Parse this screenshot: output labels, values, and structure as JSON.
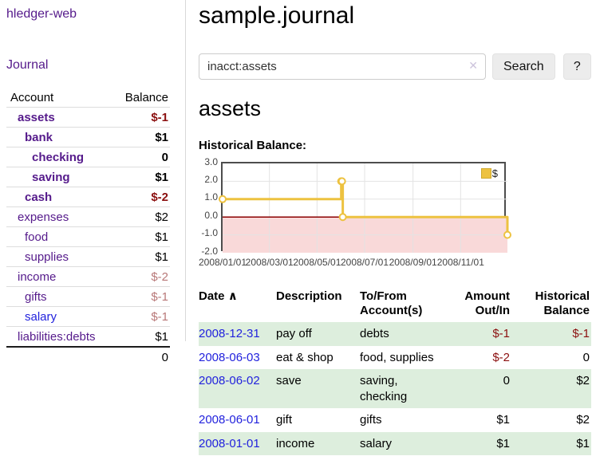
{
  "sidebar": {
    "app_title": "hledger-web",
    "nav": {
      "journal_label": "Journal"
    },
    "accounts_table": {
      "headers": {
        "account": "Account",
        "balance": "Balance"
      },
      "rows": [
        {
          "name": "assets",
          "indent": 1,
          "bold": true,
          "link_color": "purple",
          "balance": "$-1",
          "balance_color": "negative"
        },
        {
          "name": "bank",
          "indent": 2,
          "bold": true,
          "link_color": "purple",
          "balance": "$1",
          "balance_color": "normal"
        },
        {
          "name": "checking",
          "indent": 3,
          "bold": true,
          "link_color": "purple",
          "balance": "0",
          "balance_color": "normal"
        },
        {
          "name": "saving",
          "indent": 3,
          "bold": true,
          "link_color": "purple",
          "balance": "$1",
          "balance_color": "normal"
        },
        {
          "name": "cash",
          "indent": 2,
          "bold": true,
          "link_color": "purple",
          "balance": "$-2",
          "balance_color": "negative"
        },
        {
          "name": "expenses",
          "indent": 1,
          "bold": false,
          "link_color": "purple",
          "balance": "$2",
          "balance_color": "normal"
        },
        {
          "name": "food",
          "indent": 2,
          "bold": false,
          "link_color": "purple",
          "balance": "$1",
          "balance_color": "normal"
        },
        {
          "name": "supplies",
          "indent": 2,
          "bold": false,
          "link_color": "purple",
          "balance": "$1",
          "balance_color": "normal"
        },
        {
          "name": "income",
          "indent": 1,
          "bold": false,
          "link_color": "purple",
          "balance": "$-2",
          "balance_color": "negative-dim"
        },
        {
          "name": "gifts",
          "indent": 2,
          "bold": false,
          "link_color": "purple",
          "balance": "$-1",
          "balance_color": "negative-dim"
        },
        {
          "name": "salary",
          "indent": 2,
          "bold": false,
          "link_color": "blue",
          "balance": "$-1",
          "balance_color": "negative-dim"
        },
        {
          "name": "liabilities:debts",
          "indent": 1,
          "bold": false,
          "link_color": "purple",
          "balance": "$1",
          "balance_color": "normal"
        }
      ],
      "total": "0"
    }
  },
  "main": {
    "title": "sample.journal",
    "search": {
      "value": "inacct:assets",
      "clear_icon": "✕",
      "search_button_label": "Search",
      "help_button_label": "?"
    },
    "account_heading": "assets",
    "chart_label": "Historical Balance:"
  },
  "register_table": {
    "headers": {
      "date": "Date",
      "sort_icon": "∧",
      "description": "Description",
      "account": "To/From Account(s)",
      "amount": "Amount Out/In",
      "balance": "Historical Balance"
    },
    "rows": [
      {
        "date": "2008-12-31",
        "description": "pay off",
        "accounts": "debts",
        "amount": "$-1",
        "amount_negative": true,
        "balance": "$-1",
        "balance_negative": true,
        "shaded": true
      },
      {
        "date": "2008-06-03",
        "description": "eat & shop",
        "accounts": "food, supplies",
        "amount": "$-2",
        "amount_negative": true,
        "balance": "0",
        "balance_negative": false,
        "shaded": false
      },
      {
        "date": "2008-06-02",
        "description": "save",
        "accounts": "saving, checking",
        "amount": "0",
        "amount_negative": false,
        "balance": "$2",
        "balance_negative": false,
        "shaded": true
      },
      {
        "date": "2008-06-01",
        "description": "gift",
        "accounts": "gifts",
        "amount": "$1",
        "amount_negative": false,
        "balance": "$2",
        "balance_negative": false,
        "shaded": false
      },
      {
        "date": "2008-01-01",
        "description": "income",
        "accounts": "salary",
        "amount": "$1",
        "amount_negative": false,
        "balance": "$1",
        "balance_negative": false,
        "shaded": true
      }
    ]
  },
  "chart_data": {
    "type": "line",
    "title": "Historical Balance:",
    "step": true,
    "series": [
      {
        "name": "$",
        "color": "#edc240",
        "points": [
          [
            "2008-01-01",
            1
          ],
          [
            "2008-06-01",
            2
          ],
          [
            "2008-06-02",
            2
          ],
          [
            "2008-06-03",
            0
          ],
          [
            "2008-12-31",
            -1
          ]
        ]
      }
    ],
    "xlim": [
      "2008-01-01",
      "2008-12-31"
    ],
    "ylim": [
      -2,
      3
    ],
    "x_ticks": [
      {
        "date": "2008-01-01",
        "label": "2008/01/01"
      },
      {
        "date": "2008-03-01",
        "label": "2008/03/01"
      },
      {
        "date": "2008-05-01",
        "label": "2008/05/01"
      },
      {
        "date": "2008-07-01",
        "label": "2008/07/01"
      },
      {
        "date": "2008-09-01",
        "label": "2008/09/01"
      },
      {
        "date": "2008-11-01",
        "label": "2008/11/01"
      }
    ],
    "y_ticks": [
      {
        "v": 3,
        "label": "3.0"
      },
      {
        "v": 2,
        "label": "2.0"
      },
      {
        "v": 1,
        "label": "1.0"
      },
      {
        "v": 0,
        "label": "0.0"
      },
      {
        "v": -1,
        "label": "-1.0"
      },
      {
        "v": -2,
        "label": "-2.0"
      }
    ],
    "legend_position": "top-right",
    "grid": true,
    "negative_region_color": "#f9d9d9",
    "zero_line_color": "#8b0000"
  },
  "colors": {
    "link_purple": "#551a8b",
    "link_blue": "#2222dd",
    "negative": "#8b0f0f",
    "negative_dim": "#b87878",
    "row_green": "#ddeedd",
    "series_gold": "#edc240"
  }
}
